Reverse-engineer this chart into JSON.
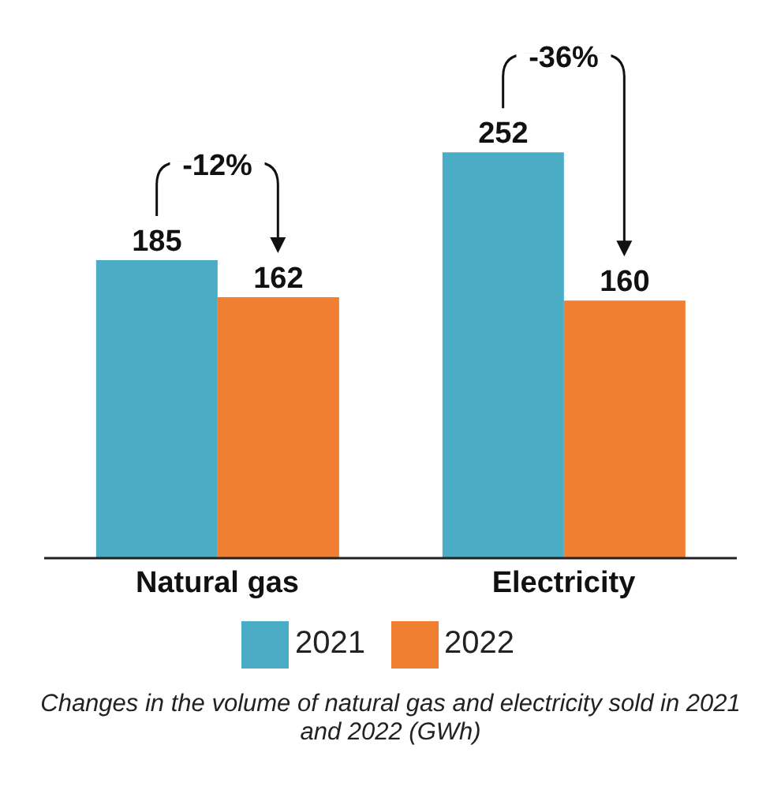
{
  "chart_data": {
    "type": "bar",
    "categories": [
      "Natural gas",
      "Electricity"
    ],
    "series": [
      {
        "name": "2021",
        "color": "#4bacc6",
        "values": [
          185,
          252
        ]
      },
      {
        "name": "2022",
        "color": "#f07f32",
        "values": [
          162,
          160
        ]
      }
    ],
    "data_labels": true,
    "legend": "bottom",
    "grid": false,
    "annotations": [
      "-12%",
      "-36%",
      "Changes in the volume of natural gas and electricity sold in 2021 and 2022 (GWh)"
    ]
  }
}
